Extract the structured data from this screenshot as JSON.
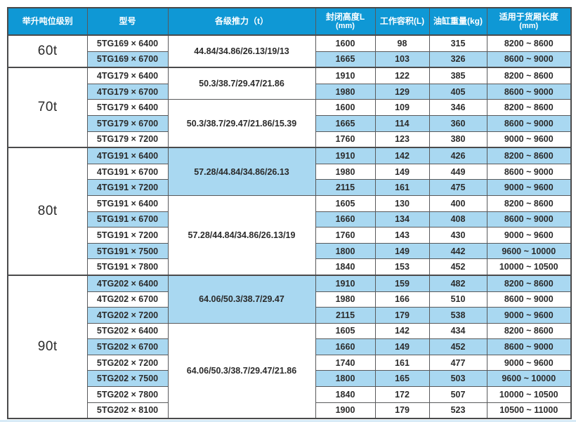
{
  "table": {
    "columns": [
      {
        "label": "举升吨位级别",
        "sub": ""
      },
      {
        "label": "型号",
        "sub": ""
      },
      {
        "label": "各级推力（t）",
        "sub": ""
      },
      {
        "label": "封闭高度L",
        "sub": "(mm)"
      },
      {
        "label": "工作容积(L)",
        "sub": ""
      },
      {
        "label": "油缸重量(kg)",
        "sub": ""
      },
      {
        "label": "适用于货厢长度",
        "sub": "(mm)"
      }
    ],
    "groups": [
      {
        "tonnage": "60t",
        "subgroups": [
          {
            "thrust": "44.84/34.86/26.13/19/13",
            "thrust_highlight": false,
            "rows": [
              {
                "model": "5TG169 × 6400",
                "closed_height": "1600",
                "volume": "98",
                "weight": "315",
                "box_length": "8200 ~ 8600",
                "highlight": false
              },
              {
                "model": "5TG169 × 6700",
                "closed_height": "1665",
                "volume": "103",
                "weight": "326",
                "box_length": "8600 ~ 9000",
                "highlight": true
              }
            ]
          }
        ]
      },
      {
        "tonnage": "70t",
        "subgroups": [
          {
            "thrust": "50.3/38.7/29.47/21.86",
            "thrust_highlight": false,
            "rows": [
              {
                "model": "4TG179 × 6400",
                "closed_height": "1910",
                "volume": "122",
                "weight": "385",
                "box_length": "8200 ~ 8600",
                "highlight": false
              },
              {
                "model": "4TG179 × 6700",
                "closed_height": "1980",
                "volume": "129",
                "weight": "405",
                "box_length": "8600 ~ 9000",
                "highlight": true
              }
            ]
          },
          {
            "thrust": "50.3/38.7/29.47/21.86/15.39",
            "thrust_highlight": false,
            "rows": [
              {
                "model": "5TG179 × 6400",
                "closed_height": "1600",
                "volume": "109",
                "weight": "346",
                "box_length": "8200 ~ 8600",
                "highlight": false
              },
              {
                "model": "5TG179 × 6700",
                "closed_height": "1665",
                "volume": "114",
                "weight": "360",
                "box_length": "8600 ~ 9000",
                "highlight": true
              },
              {
                "model": "5TG179 × 7200",
                "closed_height": "1760",
                "volume": "123",
                "weight": "380",
                "box_length": "9000 ~ 9600",
                "highlight": false
              }
            ]
          }
        ]
      },
      {
        "tonnage": "80t",
        "subgroups": [
          {
            "thrust": "57.28/44.84/34.86/26.13",
            "thrust_highlight": true,
            "rows": [
              {
                "model": "4TG191 × 6400",
                "closed_height": "1910",
                "volume": "142",
                "weight": "426",
                "box_length": "8200 ~ 8600",
                "highlight": true
              },
              {
                "model": "4TG191 × 6700",
                "closed_height": "1980",
                "volume": "149",
                "weight": "449",
                "box_length": "8600 ~ 9000",
                "highlight": false
              },
              {
                "model": "4TG191 × 7200",
                "closed_height": "2115",
                "volume": "161",
                "weight": "475",
                "box_length": "9000 ~ 9600",
                "highlight": true
              }
            ]
          },
          {
            "thrust": "57.28/44.84/34.86/26.13/19",
            "thrust_highlight": false,
            "rows": [
              {
                "model": "5TG191 × 6400",
                "closed_height": "1605",
                "volume": "130",
                "weight": "400",
                "box_length": "8200 ~ 8600",
                "highlight": false
              },
              {
                "model": "5TG191 × 6700",
                "closed_height": "1660",
                "volume": "134",
                "weight": "408",
                "box_length": "8600 ~ 9000",
                "highlight": true
              },
              {
                "model": "5TG191 × 7200",
                "closed_height": "1760",
                "volume": "143",
                "weight": "430",
                "box_length": "9000 ~ 9600",
                "highlight": false
              },
              {
                "model": "5TG191 × 7500",
                "closed_height": "1800",
                "volume": "149",
                "weight": "442",
                "box_length": "9600 ~ 10000",
                "highlight": true
              },
              {
                "model": "5TG191 × 7800",
                "closed_height": "1840",
                "volume": "153",
                "weight": "452",
                "box_length": "10000 ~ 10500",
                "highlight": false
              }
            ]
          }
        ]
      },
      {
        "tonnage": "90t",
        "subgroups": [
          {
            "thrust": "64.06/50.3/38.7/29.47",
            "thrust_highlight": true,
            "rows": [
              {
                "model": "4TG202 × 6400",
                "closed_height": "1910",
                "volume": "159",
                "weight": "482",
                "box_length": "8200 ~ 8600",
                "highlight": true
              },
              {
                "model": "4TG202 × 6700",
                "closed_height": "1980",
                "volume": "166",
                "weight": "510",
                "box_length": "8600 ~ 9000",
                "highlight": false
              },
              {
                "model": "4TG202 × 7200",
                "closed_height": "2115",
                "volume": "179",
                "weight": "538",
                "box_length": "9000 ~ 9600",
                "highlight": true
              }
            ]
          },
          {
            "thrust": "64.06/50.3/38.7/29.47/21.86",
            "thrust_highlight": false,
            "rows": [
              {
                "model": "5TG202 × 6400",
                "closed_height": "1605",
                "volume": "142",
                "weight": "434",
                "box_length": "8200 ~ 8600",
                "highlight": false
              },
              {
                "model": "5TG202 × 6700",
                "closed_height": "1660",
                "volume": "149",
                "weight": "452",
                "box_length": "8600 ~ 9000",
                "highlight": true
              },
              {
                "model": "5TG202 × 7200",
                "closed_height": "1740",
                "volume": "161",
                "weight": "477",
                "box_length": "9000 ~ 9600",
                "highlight": false
              },
              {
                "model": "5TG202 × 7500",
                "closed_height": "1800",
                "volume": "165",
                "weight": "503",
                "box_length": "9600 ~ 10000",
                "highlight": true
              },
              {
                "model": "5TG202 × 7800",
                "closed_height": "1840",
                "volume": "172",
                "weight": "507",
                "box_length": "10000 ~ 10500",
                "highlight": false
              },
              {
                "model": "5TG202 × 8100",
                "closed_height": "1900",
                "volume": "179",
                "weight": "523",
                "box_length": "10500 ~ 11000",
                "highlight": false
              }
            ]
          }
        ]
      }
    ],
    "colors": {
      "header_bg": "#0F98D5",
      "header_text": "#FFFFFF",
      "row_highlight": "#A9D8F1",
      "row_normal": "#FFFFFF",
      "border": "#58595B",
      "border_dark": "#4A4A4B",
      "text": "#2B2B2B",
      "bottom_strip": "#D7EAF6"
    }
  }
}
